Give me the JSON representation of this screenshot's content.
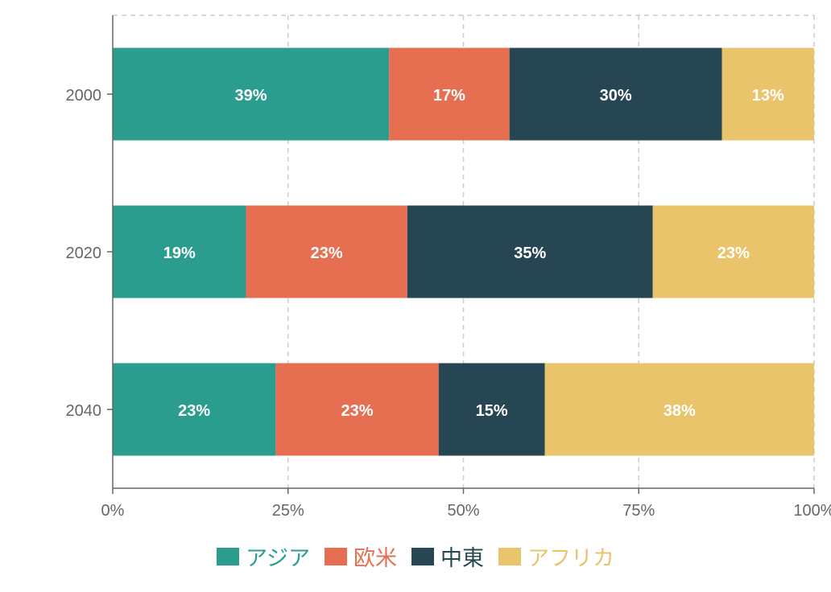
{
  "chart_data": {
    "type": "bar",
    "orientation": "horizontal",
    "stacked": true,
    "normalized": true,
    "categories": [
      "2000",
      "2020",
      "2040"
    ],
    "series": [
      {
        "name": "アジア",
        "color": "#2a9d8f",
        "values": [
          39,
          19,
          23
        ]
      },
      {
        "name": "欧米",
        "color": "#e76f51",
        "values": [
          17,
          23,
          23
        ]
      },
      {
        "name": "中東",
        "color": "#264653",
        "values": [
          30,
          35,
          15
        ]
      },
      {
        "name": "アフリカ",
        "color": "#e9c46a",
        "values": [
          13,
          23,
          38
        ]
      }
    ],
    "data_label_format": "percent",
    "xlim": [
      0,
      100
    ],
    "x_ticks": [
      "0%",
      "25%",
      "50%",
      "75%",
      "100%"
    ],
    "grid": "vertical dashed",
    "legend": "bottom"
  }
}
